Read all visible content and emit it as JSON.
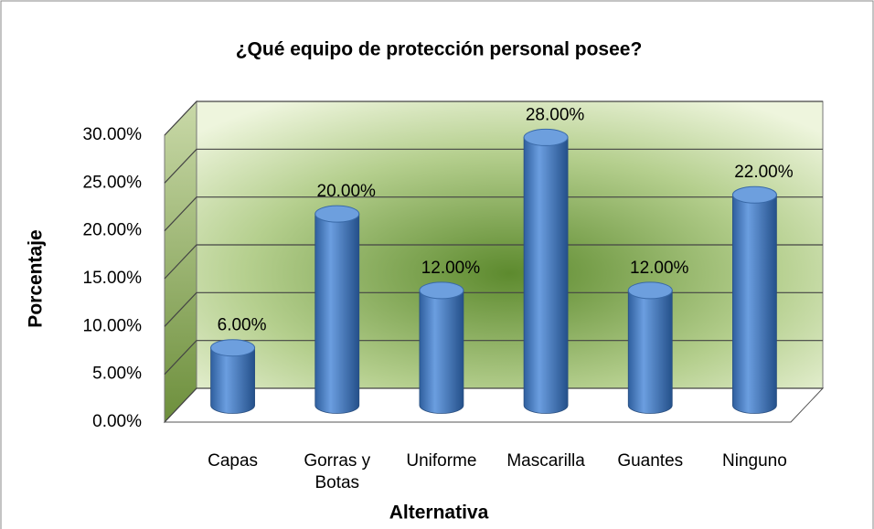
{
  "chart_data": {
    "type": "bar",
    "title": "¿Qué equipo de protección personal posee?",
    "x_label": "Alternativa",
    "y_label": "Porcentaje",
    "categories": [
      "Capas",
      "Gorras y Botas",
      "Uniforme",
      "Mascarilla",
      "Guantes",
      "Ninguno"
    ],
    "values": [
      6,
      20,
      12,
      28,
      12,
      22
    ],
    "value_labels": [
      "6.00%",
      "20.00%",
      "12.00%",
      "28.00%",
      "12.00%",
      "22.00%"
    ],
    "color": "#4a7ebb",
    "ylim": [
      0,
      30
    ],
    "yticks": [
      {
        "value": 0,
        "label": "0.00%"
      },
      {
        "value": 5,
        "label": "5.00%"
      },
      {
        "value": 10,
        "label": "10.00%"
      },
      {
        "value": 15,
        "label": "15.00%"
      },
      {
        "value": 20,
        "label": "20.00%"
      },
      {
        "value": 25,
        "label": "25.00%"
      },
      {
        "value": 30,
        "label": "30.00%"
      }
    ],
    "grid": true
  }
}
